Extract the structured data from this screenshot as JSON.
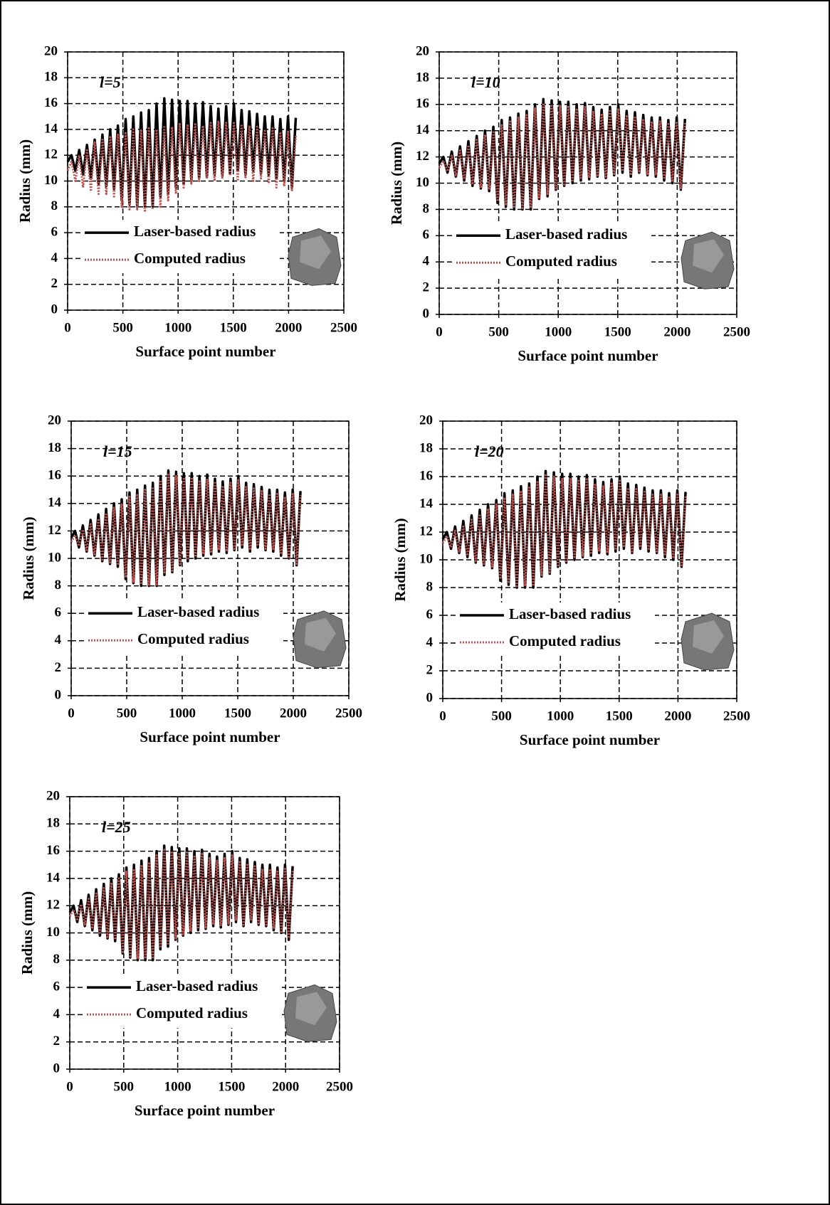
{
  "chart_data": [
    {
      "type": "line",
      "annotation": "l=5",
      "xlabel": "Surface point number",
      "ylabel": "Radius (mm)",
      "x": [
        0,
        35,
        70,
        105,
        140,
        175,
        210,
        245,
        280,
        315,
        350,
        385,
        420,
        455,
        490,
        525,
        560,
        595,
        630,
        665,
        700,
        735,
        770,
        805,
        840,
        875,
        910,
        945,
        980,
        1015,
        1050,
        1085,
        1120,
        1155,
        1190,
        1225,
        1260,
        1295,
        1330,
        1365,
        1400,
        1435,
        1470,
        1505,
        1540,
        1575,
        1610,
        1645,
        1680,
        1715,
        1750,
        1785,
        1820,
        1855,
        1890,
        1925,
        1960,
        1995,
        2030,
        2065
      ],
      "series": [
        {
          "name": "Laser-based radius",
          "color": "#000000",
          "values": [
            11.5,
            12.0,
            10.8,
            12.4,
            10.5,
            12.8,
            10.2,
            13.2,
            9.8,
            13.6,
            9.6,
            14.0,
            9.4,
            14.3,
            8.5,
            14.8,
            8.2,
            15.0,
            8.0,
            15.3,
            8.0,
            15.5,
            8.0,
            16.0,
            8.8,
            16.4,
            9.0,
            16.3,
            9.5,
            16.2,
            9.8,
            16.2,
            10.0,
            16.0,
            10.2,
            16.1,
            10.3,
            15.8,
            10.5,
            15.6,
            10.4,
            15.8,
            10.6,
            16.0,
            10.8,
            15.5,
            10.5,
            15.4,
            10.8,
            15.2,
            10.6,
            15.0,
            10.5,
            15.0,
            10.2,
            14.8,
            10.0,
            15.0,
            9.5,
            14.9
          ]
        },
        {
          "name": "Computed radius",
          "color": "#c0504d",
          "values": [
            10.8,
            11.5,
            10.0,
            12.0,
            9.5,
            12.5,
            9.2,
            13.0,
            9.0,
            13.2,
            9.0,
            13.5,
            8.8,
            13.6,
            8.0,
            13.8,
            7.8,
            14.0,
            7.8,
            14.0,
            7.6,
            14.2,
            7.8,
            14.0,
            8.0,
            14.3,
            8.5,
            14.2,
            9.0,
            14.5,
            9.5,
            14.4,
            9.8,
            14.5,
            10.0,
            14.3,
            10.2,
            14.5,
            10.0,
            14.6,
            10.2,
            14.5,
            10.4,
            14.6,
            10.0,
            14.4,
            10.2,
            14.3,
            10.0,
            14.2,
            10.2,
            14.0,
            9.8,
            14.1,
            9.5,
            13.8,
            9.6,
            13.9,
            9.2,
            13.5
          ]
        }
      ],
      "xlim": [
        0,
        2500
      ],
      "xticks": [
        0,
        500,
        1000,
        1500,
        2000,
        2500
      ],
      "ylim": [
        0,
        20
      ],
      "yticks": [
        0,
        2,
        4,
        6,
        8,
        10,
        12,
        14,
        16,
        18,
        20
      ],
      "grid": true,
      "legend": "lower left"
    },
    {
      "type": "line",
      "annotation": "l=10",
      "xlabel": "Surface point number",
      "ylabel": "Radius (mm)",
      "x": [
        0,
        35,
        70,
        105,
        140,
        175,
        210,
        245,
        280,
        315,
        350,
        385,
        420,
        455,
        490,
        525,
        560,
        595,
        630,
        665,
        700,
        735,
        770,
        805,
        840,
        875,
        910,
        945,
        980,
        1015,
        1050,
        1085,
        1120,
        1155,
        1190,
        1225,
        1260,
        1295,
        1330,
        1365,
        1400,
        1435,
        1470,
        1505,
        1540,
        1575,
        1610,
        1645,
        1680,
        1715,
        1750,
        1785,
        1820,
        1855,
        1890,
        1925,
        1960,
        1995,
        2030,
        2065
      ],
      "series": [
        {
          "name": "Laser-based radius",
          "color": "#000000",
          "values": [
            11.5,
            12.0,
            10.8,
            12.4,
            10.5,
            12.8,
            10.2,
            13.2,
            9.8,
            13.6,
            9.6,
            14.0,
            9.4,
            14.3,
            8.5,
            14.8,
            8.2,
            15.0,
            8.0,
            15.3,
            8.0,
            15.5,
            8.0,
            16.0,
            8.8,
            16.4,
            9.0,
            16.3,
            9.5,
            16.2,
            9.8,
            16.2,
            10.0,
            16.0,
            10.2,
            16.1,
            10.3,
            15.8,
            10.5,
            15.6,
            10.4,
            15.8,
            10.6,
            16.0,
            10.8,
            15.5,
            10.5,
            15.4,
            10.8,
            15.2,
            10.6,
            15.0,
            10.5,
            15.0,
            10.2,
            14.8,
            10.0,
            15.0,
            9.5,
            14.9
          ]
        },
        {
          "name": "Computed radius",
          "color": "#c0504d",
          "values": [
            11.2,
            11.7,
            10.9,
            12.1,
            10.6,
            12.5,
            10.3,
            12.9,
            9.9,
            13.3,
            9.7,
            13.7,
            9.5,
            14.0,
            8.6,
            14.5,
            8.3,
            14.7,
            8.1,
            15.0,
            8.1,
            15.2,
            8.1,
            15.7,
            8.9,
            16.1,
            9.1,
            16.0,
            9.6,
            15.9,
            9.9,
            15.9,
            10.1,
            15.7,
            10.3,
            15.8,
            10.4,
            15.5,
            10.6,
            15.3,
            10.5,
            15.5,
            10.7,
            15.7,
            10.9,
            15.2,
            10.6,
            15.1,
            10.9,
            14.9,
            10.7,
            14.7,
            10.6,
            14.7,
            10.3,
            14.5,
            10.1,
            14.7,
            9.6,
            14.6
          ]
        }
      ],
      "xlim": [
        0,
        2500
      ],
      "xticks": [
        0,
        500,
        1000,
        1500,
        2000,
        2500
      ],
      "ylim": [
        0,
        20
      ],
      "yticks": [
        0,
        2,
        4,
        6,
        8,
        10,
        12,
        14,
        16,
        18,
        20
      ],
      "grid": true,
      "legend": "lower left"
    },
    {
      "type": "line",
      "annotation": "l=15",
      "xlabel": "Surface point number",
      "ylabel": "Radius (mm)",
      "x": [
        0,
        35,
        70,
        105,
        140,
        175,
        210,
        245,
        280,
        315,
        350,
        385,
        420,
        455,
        490,
        525,
        560,
        595,
        630,
        665,
        700,
        735,
        770,
        805,
        840,
        875,
        910,
        945,
        980,
        1015,
        1050,
        1085,
        1120,
        1155,
        1190,
        1225,
        1260,
        1295,
        1330,
        1365,
        1400,
        1435,
        1470,
        1505,
        1540,
        1575,
        1610,
        1645,
        1680,
        1715,
        1750,
        1785,
        1820,
        1855,
        1890,
        1925,
        1960,
        1995,
        2030,
        2065
      ],
      "series": [
        {
          "name": "Laser-based radius",
          "color": "#000000",
          "values": [
            11.5,
            12.0,
            10.8,
            12.4,
            10.5,
            12.8,
            10.2,
            13.2,
            9.8,
            13.6,
            9.6,
            14.0,
            9.4,
            14.3,
            8.5,
            14.8,
            8.2,
            15.0,
            8.0,
            15.3,
            8.0,
            15.5,
            8.0,
            16.0,
            8.8,
            16.4,
            9.0,
            16.3,
            9.5,
            16.2,
            9.8,
            16.2,
            10.0,
            16.0,
            10.2,
            16.1,
            10.3,
            15.8,
            10.5,
            15.6,
            10.4,
            15.8,
            10.6,
            16.0,
            10.8,
            15.5,
            10.5,
            15.4,
            10.8,
            15.2,
            10.6,
            15.0,
            10.5,
            15.0,
            10.2,
            14.8,
            10.0,
            15.0,
            9.5,
            14.9
          ]
        },
        {
          "name": "Computed radius",
          "color": "#c0504d",
          "values": [
            11.2,
            11.7,
            10.9,
            12.1,
            10.6,
            12.5,
            10.3,
            12.9,
            9.9,
            13.3,
            9.7,
            13.7,
            9.5,
            14.0,
            8.6,
            14.5,
            8.3,
            14.7,
            8.1,
            15.0,
            8.1,
            15.2,
            8.1,
            15.7,
            8.9,
            16.1,
            9.1,
            16.0,
            9.6,
            15.9,
            9.9,
            15.9,
            10.1,
            15.7,
            10.3,
            15.8,
            10.4,
            15.5,
            10.6,
            15.3,
            10.5,
            15.5,
            10.7,
            15.7,
            10.9,
            15.2,
            10.6,
            15.1,
            10.9,
            14.9,
            10.7,
            14.7,
            10.6,
            14.7,
            10.3,
            14.5,
            10.1,
            14.7,
            9.6,
            14.6
          ]
        }
      ],
      "xlim": [
        0,
        2500
      ],
      "xticks": [
        0,
        500,
        1000,
        1500,
        2000,
        2500
      ],
      "ylim": [
        0,
        20
      ],
      "yticks": [
        0,
        2,
        4,
        6,
        8,
        10,
        12,
        14,
        16,
        18,
        20
      ],
      "grid": true,
      "legend": "lower left"
    },
    {
      "type": "line",
      "annotation": "l=20",
      "xlabel": "Surface point number",
      "ylabel": "Radius (mm)",
      "x": [
        0,
        35,
        70,
        105,
        140,
        175,
        210,
        245,
        280,
        315,
        350,
        385,
        420,
        455,
        490,
        525,
        560,
        595,
        630,
        665,
        700,
        735,
        770,
        805,
        840,
        875,
        910,
        945,
        980,
        1015,
        1050,
        1085,
        1120,
        1155,
        1190,
        1225,
        1260,
        1295,
        1330,
        1365,
        1400,
        1435,
        1470,
        1505,
        1540,
        1575,
        1610,
        1645,
        1680,
        1715,
        1750,
        1785,
        1820,
        1855,
        1890,
        1925,
        1960,
        1995,
        2030,
        2065
      ],
      "series": [
        {
          "name": "Laser-based radius",
          "color": "#000000",
          "values": [
            11.5,
            12.0,
            10.8,
            12.4,
            10.5,
            12.8,
            10.2,
            13.2,
            9.8,
            13.6,
            9.6,
            14.0,
            9.4,
            14.3,
            8.5,
            14.8,
            8.2,
            15.0,
            8.0,
            15.3,
            8.0,
            15.5,
            8.0,
            16.0,
            8.8,
            16.4,
            9.0,
            16.3,
            9.5,
            16.2,
            9.8,
            16.2,
            10.0,
            16.0,
            10.2,
            16.1,
            10.3,
            15.8,
            10.5,
            15.6,
            10.4,
            15.8,
            10.6,
            16.0,
            10.8,
            15.5,
            10.5,
            15.4,
            10.8,
            15.2,
            10.6,
            15.0,
            10.5,
            15.0,
            10.2,
            14.8,
            10.0,
            15.0,
            9.5,
            14.9
          ]
        },
        {
          "name": "Computed radius",
          "color": "#c0504d",
          "values": [
            11.2,
            11.7,
            10.9,
            12.1,
            10.6,
            12.5,
            10.3,
            12.9,
            9.9,
            13.3,
            9.7,
            13.7,
            9.5,
            14.0,
            8.6,
            14.5,
            8.3,
            14.7,
            8.1,
            15.0,
            8.1,
            15.2,
            8.1,
            15.7,
            8.9,
            16.1,
            9.1,
            16.0,
            9.6,
            15.9,
            9.9,
            15.9,
            10.1,
            15.7,
            10.3,
            15.8,
            10.4,
            15.5,
            10.6,
            15.3,
            10.5,
            15.5,
            10.7,
            15.7,
            10.9,
            15.2,
            10.6,
            15.1,
            10.9,
            14.9,
            10.7,
            14.7,
            10.6,
            14.7,
            10.3,
            14.5,
            10.1,
            14.7,
            9.6,
            14.6
          ]
        }
      ],
      "xlim": [
        0,
        2500
      ],
      "xticks": [
        0,
        500,
        1000,
        1500,
        2000,
        2500
      ],
      "ylim": [
        0,
        20
      ],
      "yticks": [
        0,
        2,
        4,
        6,
        8,
        10,
        12,
        14,
        16,
        18,
        20
      ],
      "grid": true,
      "legend": "lower left"
    },
    {
      "type": "line",
      "annotation": "l=25",
      "xlabel": "Surface point number",
      "ylabel": "Radius (mm)",
      "x": [
        0,
        35,
        70,
        105,
        140,
        175,
        210,
        245,
        280,
        315,
        350,
        385,
        420,
        455,
        490,
        525,
        560,
        595,
        630,
        665,
        700,
        735,
        770,
        805,
        840,
        875,
        910,
        945,
        980,
        1015,
        1050,
        1085,
        1120,
        1155,
        1190,
        1225,
        1260,
        1295,
        1330,
        1365,
        1400,
        1435,
        1470,
        1505,
        1540,
        1575,
        1610,
        1645,
        1680,
        1715,
        1750,
        1785,
        1820,
        1855,
        1890,
        1925,
        1960,
        1995,
        2030,
        2065
      ],
      "series": [
        {
          "name": "Laser-based radius",
          "color": "#000000",
          "values": [
            11.5,
            12.0,
            10.8,
            12.4,
            10.5,
            12.8,
            10.2,
            13.2,
            9.8,
            13.6,
            9.6,
            14.0,
            9.4,
            14.3,
            8.5,
            14.8,
            8.2,
            15.0,
            8.0,
            15.3,
            8.0,
            15.5,
            8.0,
            16.0,
            8.8,
            16.4,
            9.0,
            16.3,
            9.5,
            16.2,
            9.8,
            16.2,
            10.0,
            16.0,
            10.2,
            16.1,
            10.3,
            15.8,
            10.5,
            15.6,
            10.4,
            15.8,
            10.6,
            16.0,
            10.8,
            15.5,
            10.5,
            15.4,
            10.8,
            15.2,
            10.6,
            15.0,
            10.5,
            15.0,
            10.2,
            14.8,
            10.0,
            15.0,
            9.5,
            14.9
          ]
        },
        {
          "name": "Computed radius",
          "color": "#c0504d",
          "values": [
            11.2,
            11.7,
            10.9,
            12.1,
            10.6,
            12.5,
            10.3,
            12.9,
            9.9,
            13.3,
            9.7,
            13.7,
            9.5,
            14.0,
            8.6,
            14.5,
            8.3,
            14.7,
            8.1,
            15.0,
            8.1,
            15.2,
            8.1,
            15.7,
            8.9,
            16.1,
            9.1,
            16.0,
            9.6,
            15.9,
            9.9,
            15.9,
            10.1,
            15.7,
            10.3,
            15.8,
            10.4,
            15.5,
            10.6,
            15.3,
            10.5,
            15.5,
            10.7,
            15.7,
            10.9,
            15.2,
            10.6,
            15.1,
            10.9,
            14.9,
            10.7,
            14.7,
            10.6,
            14.7,
            10.3,
            14.5,
            10.1,
            14.7,
            9.6,
            14.6
          ]
        }
      ],
      "xlim": [
        0,
        2500
      ],
      "xticks": [
        0,
        500,
        1000,
        1500,
        2000,
        2500
      ],
      "ylim": [
        0,
        20
      ],
      "yticks": [
        0,
        2,
        4,
        6,
        8,
        10,
        12,
        14,
        16,
        18,
        20
      ],
      "grid": true,
      "legend": "lower left"
    }
  ]
}
